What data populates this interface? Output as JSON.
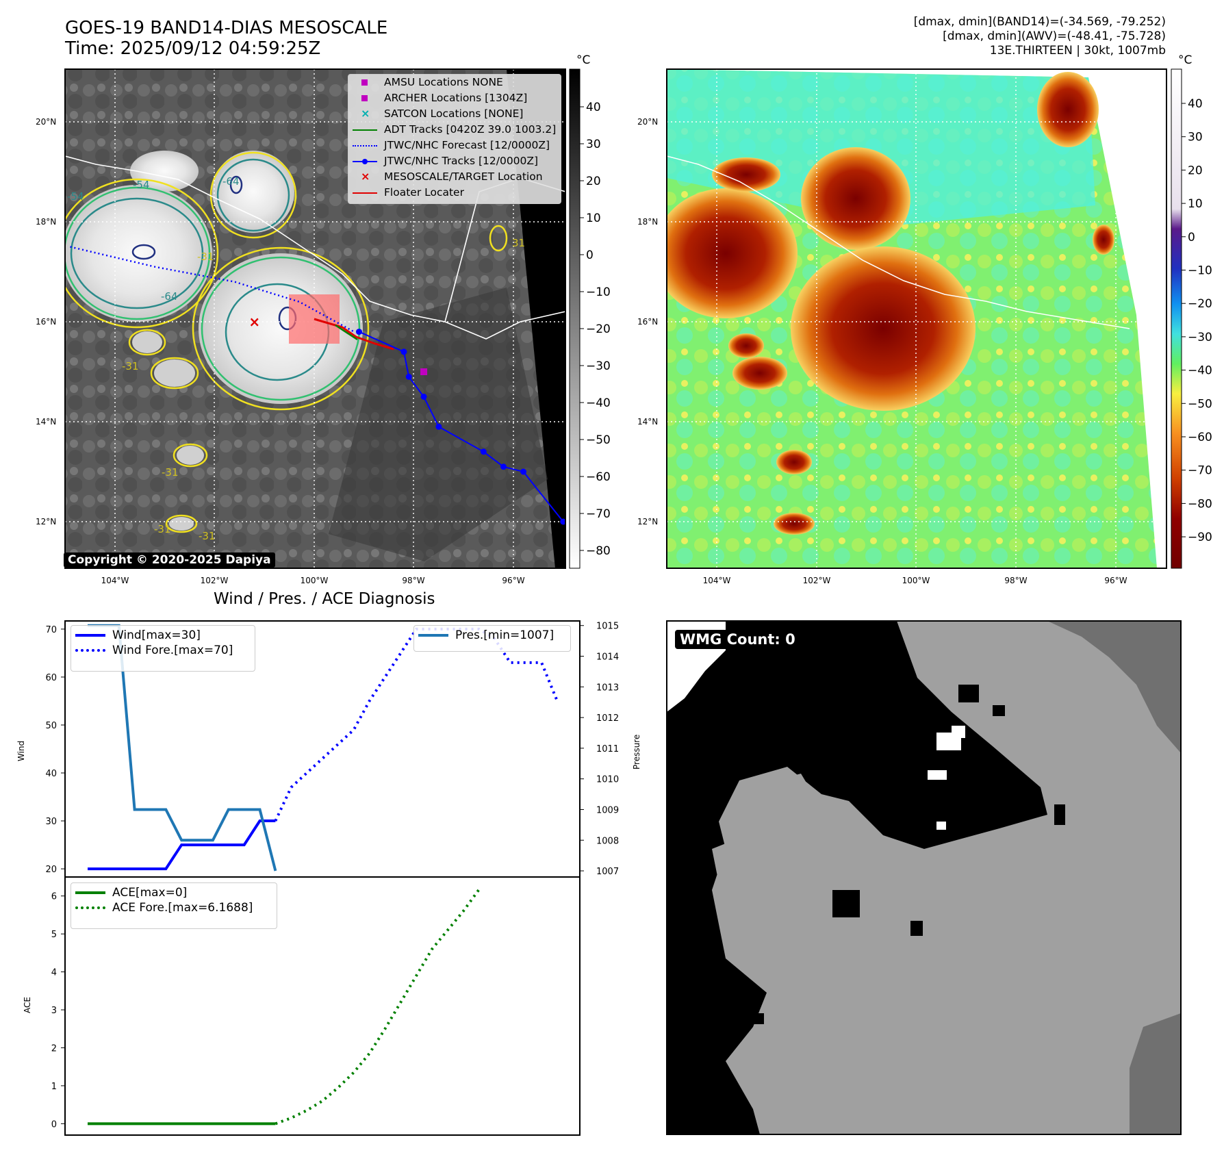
{
  "header": {
    "title_line1": "GOES-19 BAND14-DIAS MESOSCALE",
    "title_line2": "Time: 2025/09/12 04:59:25Z",
    "info_line1": "[dmax, dmin](BAND14)=(-34.569, -79.252)",
    "info_line2": "[dmax, dmin](AWV)=(-48.41, -75.728)",
    "info_line3": "13E.THIRTEEN | 30kt, 1007mb"
  },
  "map_panel": {
    "lat_labels": [
      "20°N",
      "18°N",
      "16°N",
      "14°N",
      "12°N"
    ],
    "lon_labels": [
      "104°W",
      "102°W",
      "100°W",
      "98°W",
      "96°W"
    ],
    "colorbar_unit": "°C",
    "colorbar_ticks_left": [
      "40",
      "30",
      "20",
      "10",
      "0",
      "−10",
      "−20",
      "−30",
      "−40",
      "−50",
      "−60",
      "−70",
      "−80"
    ],
    "colorbar_ticks_right": [
      "40",
      "30",
      "20",
      "10",
      "0",
      "−10",
      "−20",
      "−30",
      "−40",
      "−50",
      "−60",
      "−70",
      "−80",
      "−90"
    ],
    "copyright": "Copyright © 2020-2025 Dapiya",
    "legend": [
      {
        "label": "AMSU Locations NONE",
        "color": "#c000c0",
        "marker": "square"
      },
      {
        "label": "ARCHER Locations [1304Z]",
        "color": "#c000c0",
        "marker": "square"
      },
      {
        "label": "SATCON Locations [NONE]",
        "color": "#00b0b0",
        "marker": "x"
      },
      {
        "label": "ADT Tracks [0420Z 39.0 1003.2]",
        "color": "#008000",
        "marker": "line"
      },
      {
        "label": "JTWC/NHC Forecast [12/0000Z]",
        "color": "#0000ff",
        "marker": "dotted"
      },
      {
        "label": "JTWC/NHC Tracks [12/0000Z]",
        "color": "#0000ff",
        "marker": "line-dot"
      },
      {
        "label": "MESOSCALE/TARGET Location",
        "color": "#e00000",
        "marker": "x"
      },
      {
        "label": "Floater Locater",
        "color": "#e00000",
        "marker": "line"
      }
    ],
    "contour_labels": [
      "-54",
      "-64",
      "-31",
      "-31",
      "-54",
      "-64",
      "-31",
      "-31",
      "-31",
      "31"
    ],
    "track": {
      "jtwc_tracks": [
        [
          -99.1,
          15.8
        ],
        [
          -98.2,
          15.4
        ],
        [
          -98.1,
          14.9
        ],
        [
          -97.8,
          14.5
        ],
        [
          -97.5,
          13.9
        ],
        [
          -96.6,
          13.4
        ],
        [
          -96.2,
          13.1
        ],
        [
          -95.8,
          13.0
        ],
        [
          -95.0,
          12.0
        ]
      ],
      "jtwc_forecast": [
        [
          -104.9,
          17.5
        ],
        [
          -103.2,
          17.1
        ],
        [
          -101.6,
          16.8
        ],
        [
          -100.3,
          16.4
        ],
        [
          -99.2,
          15.8
        ]
      ],
      "target": [
        -101.2,
        16.0
      ],
      "archer": [
        -97.8,
        15.0
      ]
    }
  },
  "chart_data": [
    {
      "type": "line",
      "title": "Wind / Pres. / ACE Diagnosis",
      "ylabel": "Wind",
      "y2label": "Pressure",
      "ylim": [
        18.3,
        71.7
      ],
      "y2lim": [
        1006.8,
        1015.15
      ],
      "yticks": [
        "20",
        "30",
        "40",
        "50",
        "60",
        "70"
      ],
      "y2ticks": [
        "1007",
        "1008",
        "1009",
        "1010",
        "1011",
        "1012",
        "1013",
        "1014",
        "1015"
      ],
      "x": [
        0,
        1,
        2,
        3,
        4,
        5,
        6,
        7,
        8,
        9,
        10,
        11,
        12,
        13,
        14,
        15,
        16,
        17,
        18,
        19,
        20,
        21,
        22,
        23,
        24,
        25,
        26,
        27,
        28,
        29,
        30
      ],
      "series": [
        {
          "name": "Wind[max=30]",
          "style": "solid",
          "color": "#0000ff",
          "axis": "left",
          "values": [
            20,
            20,
            20,
            20,
            20,
            20,
            25,
            25,
            25,
            25,
            25,
            30,
            30,
            null,
            null,
            null,
            null,
            null,
            null,
            null,
            null,
            null,
            null,
            null,
            null,
            null,
            null,
            null,
            null,
            null,
            null
          ]
        },
        {
          "name": "Wind Fore.[max=70]",
          "style": "dotted",
          "color": "#0000ff",
          "axis": "left",
          "values": [
            null,
            null,
            null,
            null,
            null,
            null,
            null,
            null,
            null,
            null,
            null,
            null,
            30,
            37,
            40,
            43,
            46,
            49,
            55,
            60,
            65,
            70,
            70,
            70,
            70,
            70,
            68,
            63,
            63,
            63,
            55
          ]
        },
        {
          "name": "Pres.[min=1007]",
          "style": "solid",
          "color": "#1f77b4",
          "axis": "right",
          "values": [
            1015,
            1015,
            1015,
            1009,
            1009,
            1009,
            1008,
            1008,
            1008,
            1009,
            1009,
            1009,
            1007,
            null,
            null,
            null,
            null,
            null,
            null,
            null,
            null,
            null,
            null,
            null,
            null,
            null,
            null,
            null,
            null,
            null,
            null
          ]
        }
      ]
    },
    {
      "type": "line",
      "title": "",
      "ylabel": "ACE",
      "ylim": [
        -0.3,
        6.5
      ],
      "yticks": [
        "0",
        "1",
        "2",
        "3",
        "4",
        "5",
        "6"
      ],
      "x": [
        0,
        1,
        2,
        3,
        4,
        5,
        6,
        7,
        8,
        9,
        10,
        11,
        12,
        13,
        14,
        15,
        16,
        17,
        18,
        19,
        20,
        21,
        22,
        23,
        24,
        25,
        26,
        27,
        28,
        29,
        30
      ],
      "series": [
        {
          "name": "ACE[max=0]",
          "style": "solid",
          "color": "#008000",
          "values": [
            0,
            0,
            0,
            0,
            0,
            0,
            0,
            0,
            0,
            0,
            0,
            0,
            0,
            null,
            null,
            null,
            null,
            null,
            null,
            null,
            null,
            null,
            null,
            null,
            null,
            null,
            null,
            null,
            null,
            null,
            null
          ]
        },
        {
          "name": "ACE Fore.[max=6.1688]",
          "style": "dotted",
          "color": "#008000",
          "values": [
            null,
            null,
            null,
            null,
            null,
            null,
            null,
            null,
            null,
            null,
            null,
            null,
            0,
            0.15,
            0.35,
            0.6,
            0.95,
            1.35,
            1.85,
            2.5,
            3.2,
            3.9,
            4.6,
            5.1,
            5.6,
            6.1688,
            null,
            null,
            null,
            null,
            null
          ]
        }
      ]
    }
  ],
  "wmg_panel": {
    "label": "WMG Count: 0"
  }
}
